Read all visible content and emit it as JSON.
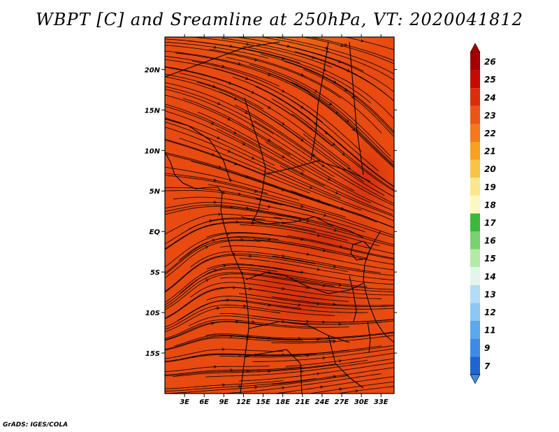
{
  "title": "WBPT [C] and Sreamline at 250hPa, VT: 2020041812",
  "credit": "GrADS: IGES/COLA",
  "map": {
    "lon_range": [
      0,
      35
    ],
    "lat_range": [
      -20,
      24
    ],
    "lon_ticks": [
      {
        "value": 3,
        "label": "3E"
      },
      {
        "value": 6,
        "label": "6E"
      },
      {
        "value": 9,
        "label": "9E"
      },
      {
        "value": 12,
        "label": "12E"
      },
      {
        "value": 15,
        "label": "15E"
      },
      {
        "value": 18,
        "label": "18E"
      },
      {
        "value": 21,
        "label": "21E"
      },
      {
        "value": 24,
        "label": "24E"
      },
      {
        "value": 27,
        "label": "27E"
      },
      {
        "value": 30,
        "label": "30E"
      },
      {
        "value": 33,
        "label": "33E"
      }
    ],
    "lat_ticks": [
      {
        "value": 20,
        "label": "20N"
      },
      {
        "value": 15,
        "label": "15N"
      },
      {
        "value": 10,
        "label": "10N"
      },
      {
        "value": 5,
        "label": "5N"
      },
      {
        "value": 0,
        "label": "EQ"
      },
      {
        "value": -5,
        "label": "5S"
      },
      {
        "value": -10,
        "label": "10S"
      },
      {
        "value": -15,
        "label": "15S"
      }
    ],
    "field": "Wet-bulb potential temperature (C)",
    "field_colors": {
      "dominant": "#e84a10",
      "warm_core": "#d4300c",
      "cooler_north": "#f07814",
      "coolest_north": "#f5a51e"
    }
  },
  "colorbar": {
    "levels": [
      {
        "label": "26",
        "color": "#a50000"
      },
      {
        "label": "25",
        "color": "#c80a00"
      },
      {
        "label": "24",
        "color": "#dc2d0a"
      },
      {
        "label": "23",
        "color": "#ec5614"
      },
      {
        "label": "22",
        "color": "#f5781e"
      },
      {
        "label": "21",
        "color": "#f9a01e"
      },
      {
        "label": "20",
        "color": "#fac346"
      },
      {
        "label": "19",
        "color": "#fae68c"
      },
      {
        "label": "18",
        "color": "#fcf8c0"
      },
      {
        "label": "17",
        "color": "#3cb93c"
      },
      {
        "label": "16",
        "color": "#78d26e"
      },
      {
        "label": "15",
        "color": "#b4eaa8"
      },
      {
        "label": "14",
        "color": "#e4f6ec"
      },
      {
        "label": "13",
        "color": "#b4dcf6"
      },
      {
        "label": "12",
        "color": "#8cc8f5"
      },
      {
        "label": "11",
        "color": "#5aa8f0"
      },
      {
        "label": "9",
        "color": "#3c8ce6"
      },
      {
        "label": "7",
        "color": "#1e64d2"
      }
    ],
    "bottom_color": "#3c8ce6"
  }
}
